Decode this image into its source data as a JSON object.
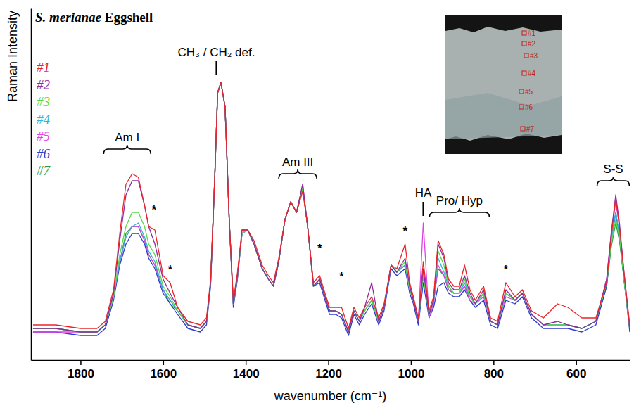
{
  "chart_data": {
    "type": "line",
    "title": "S. merianae Eggshell",
    "xlabel": "wavenumber (cm⁻¹)",
    "ylabel": "Raman Intensity",
    "xlim": [
      1920,
      470
    ],
    "xticks": [
      1800,
      1600,
      1400,
      1200,
      1000,
      800,
      600
    ],
    "ylim": [
      0,
      100
    ],
    "grid": false,
    "legend": "top-left",
    "tick_labels": "x",
    "x": [
      1915,
      1860,
      1800,
      1760,
      1740,
      1720,
      1705,
      1690,
      1675,
      1660,
      1645,
      1635,
      1620,
      1600,
      1583,
      1565,
      1540,
      1510,
      1495,
      1485,
      1475,
      1468,
      1460,
      1450,
      1440,
      1430,
      1420,
      1409,
      1395,
      1380,
      1360,
      1345,
      1333,
      1320,
      1305,
      1291,
      1277,
      1262,
      1250,
      1236,
      1221,
      1208,
      1197,
      1182,
      1168,
      1151,
      1138,
      1125,
      1112,
      1095,
      1078,
      1065,
      1048,
      1034,
      1014,
      1003,
      994,
      982,
      970,
      956,
      945,
      934,
      920,
      909,
      896,
      883,
      870,
      857,
      844,
      824,
      807,
      790,
      770,
      748,
      730,
      708,
      679,
      645,
      620,
      586,
      552,
      526,
      515,
      504,
      495,
      484,
      470
    ],
    "series": [
      {
        "name": "#1",
        "color": "#e8262a",
        "values": [
          10,
          10,
          9,
          9,
          11,
          20,
          36,
          50,
          53,
          52,
          44,
          38,
          37,
          24,
          22,
          15,
          11,
          10,
          12,
          23,
          52,
          76,
          79,
          72,
          40,
          17,
          25,
          37,
          37,
          34,
          27,
          24,
          22,
          29,
          40,
          45,
          42,
          48,
          38,
          22,
          24,
          19,
          15,
          15,
          15,
          9,
          15,
          12,
          15,
          18,
          12,
          16,
          27,
          26,
          33,
          22,
          18,
          12,
          28,
          14,
          18,
          34,
          30,
          23,
          21,
          21,
          27,
          20,
          17,
          21,
          12,
          11,
          22,
          18,
          20,
          14,
          12,
          16,
          15,
          12,
          12,
          22,
          35,
          46,
          38,
          25,
          10
        ]
      },
      {
        "name": "#2",
        "color": "#8e2a9c",
        "values": [
          9,
          9,
          8,
          8,
          10,
          19,
          34,
          47,
          51,
          51,
          44,
          38,
          33,
          23,
          19,
          15,
          10,
          9,
          11,
          22,
          52,
          76,
          79,
          72,
          40,
          16,
          24,
          37,
          37,
          33,
          26,
          23,
          21,
          28,
          40,
          45,
          42,
          50,
          38,
          21,
          23,
          18,
          14,
          14,
          13,
          8,
          14,
          11,
          15,
          22,
          11,
          15,
          27,
          25,
          29,
          21,
          17,
          11,
          26,
          13,
          17,
          33,
          29,
          22,
          20,
          20,
          24,
          19,
          16,
          20,
          11,
          10,
          20,
          17,
          19,
          13,
          10,
          11,
          10,
          9,
          11,
          23,
          36,
          47,
          39,
          25,
          9
        ]
      },
      {
        "name": "#3",
        "color": "#5ad84a",
        "values": [
          9,
          9,
          8,
          8,
          10,
          18,
          30,
          38,
          42,
          42,
          38,
          33,
          30,
          21,
          18,
          14,
          10,
          9,
          11,
          22,
          52,
          76,
          79,
          72,
          40,
          16,
          24,
          36,
          37,
          33,
          26,
          23,
          21,
          28,
          40,
          45,
          42,
          49,
          38,
          21,
          23,
          18,
          14,
          14,
          13,
          8,
          14,
          11,
          14,
          17,
          11,
          15,
          27,
          25,
          28,
          20,
          17,
          11,
          24,
          13,
          17,
          31,
          27,
          21,
          19,
          19,
          23,
          18,
          16,
          19,
          11,
          10,
          19,
          17,
          19,
          13,
          10,
          10,
          10,
          9,
          11,
          22,
          33,
          40,
          35,
          23,
          9
        ]
      },
      {
        "name": "#4",
        "color": "#31b4d8",
        "values": [
          9,
          9,
          8,
          8,
          10,
          18,
          28,
          35,
          38,
          39,
          35,
          31,
          28,
          20,
          17,
          14,
          10,
          9,
          11,
          22,
          52,
          76,
          79,
          72,
          40,
          16,
          24,
          36,
          37,
          33,
          26,
          23,
          21,
          28,
          40,
          45,
          42,
          49,
          38,
          21,
          23,
          18,
          14,
          14,
          13,
          8,
          14,
          11,
          14,
          17,
          11,
          15,
          27,
          25,
          27,
          20,
          17,
          11,
          25,
          13,
          17,
          29,
          25,
          21,
          19,
          19,
          22,
          18,
          16,
          19,
          11,
          10,
          19,
          17,
          19,
          13,
          10,
          10,
          10,
          9,
          11,
          22,
          34,
          42,
          36,
          24,
          9
        ]
      },
      {
        "name": "#5",
        "color": "#e040e8",
        "values": [
          8,
          8,
          8,
          8,
          10,
          18,
          28,
          35,
          38,
          38,
          34,
          30,
          27,
          20,
          17,
          14,
          10,
          9,
          11,
          22,
          52,
          76,
          79,
          72,
          40,
          16,
          24,
          36,
          37,
          33,
          26,
          23,
          21,
          28,
          40,
          45,
          42,
          50,
          38,
          21,
          23,
          18,
          14,
          14,
          13,
          8,
          14,
          11,
          14,
          17,
          11,
          15,
          27,
          25,
          27,
          20,
          17,
          11,
          39,
          12,
          16,
          27,
          24,
          20,
          19,
          19,
          21,
          17,
          16,
          18,
          11,
          10,
          18,
          17,
          19,
          13,
          10,
          10,
          10,
          9,
          11,
          23,
          36,
          45,
          38,
          24,
          9
        ]
      },
      {
        "name": "#6",
        "color": "#2b3bd1",
        "values": [
          8,
          8,
          7,
          7,
          9,
          17,
          27,
          33,
          36,
          36,
          33,
          29,
          26,
          19,
          16,
          13,
          9,
          8,
          10,
          21,
          52,
          76,
          79,
          72,
          40,
          15,
          23,
          36,
          37,
          33,
          26,
          23,
          21,
          28,
          40,
          45,
          42,
          49,
          38,
          21,
          22,
          17,
          13,
          13,
          12,
          7,
          13,
          10,
          13,
          16,
          10,
          14,
          26,
          24,
          26,
          19,
          16,
          10,
          22,
          12,
          15,
          21,
          22,
          19,
          18,
          18,
          20,
          17,
          15,
          17,
          10,
          9,
          17,
          16,
          18,
          12,
          9,
          9,
          9,
          8,
          10,
          21,
          34,
          42,
          35,
          23,
          8
        ]
      },
      {
        "name": "#7",
        "color": "#2e9a3e",
        "values": [
          9,
          9,
          8,
          8,
          10,
          18,
          28,
          36,
          38,
          38,
          34,
          30,
          27,
          20,
          16,
          14,
          10,
          9,
          11,
          22,
          52,
          76,
          79,
          72,
          40,
          16,
          24,
          36,
          37,
          33,
          26,
          23,
          21,
          28,
          40,
          45,
          42,
          49,
          38,
          21,
          23,
          18,
          14,
          14,
          13,
          8,
          14,
          11,
          14,
          17,
          11,
          15,
          27,
          25,
          27,
          20,
          17,
          11,
          24,
          13,
          17,
          26,
          24,
          20,
          19,
          19,
          21,
          18,
          16,
          19,
          11,
          10,
          19,
          17,
          19,
          13,
          10,
          10,
          10,
          9,
          11,
          21,
          32,
          39,
          34,
          23,
          9
        ]
      }
    ],
    "annotations": [
      {
        "text": "Am I",
        "x": [
          1744,
          1630
        ],
        "y": 60,
        "marker": "brace"
      },
      {
        "text": "CH₃ / CH₂ def.",
        "x": 1471,
        "y": 81,
        "marker": "line"
      },
      {
        "text": "Am III",
        "x": [
          1320,
          1228
        ],
        "y": 53,
        "marker": "brace"
      },
      {
        "text": "HA",
        "x": 970,
        "y": 41,
        "marker": "line"
      },
      {
        "text": "Pro/ Hyp",
        "x": [
          955,
          810
        ],
        "y": 42,
        "marker": "brace"
      },
      {
        "text": "S-S",
        "x": [
          549,
          471
        ],
        "y": 51,
        "marker": "brace"
      },
      {
        "text": "*",
        "x": 1622,
        "y": 43
      },
      {
        "text": "*",
        "x": 1583,
        "y": 26
      },
      {
        "text": "*",
        "x": 1221,
        "y": 32
      },
      {
        "text": "*",
        "x": 1168,
        "y": 24
      },
      {
        "text": "*",
        "x": 1014,
        "y": 37
      },
      {
        "text": "*",
        "x": 770,
        "y": 26
      }
    ]
  }
}
